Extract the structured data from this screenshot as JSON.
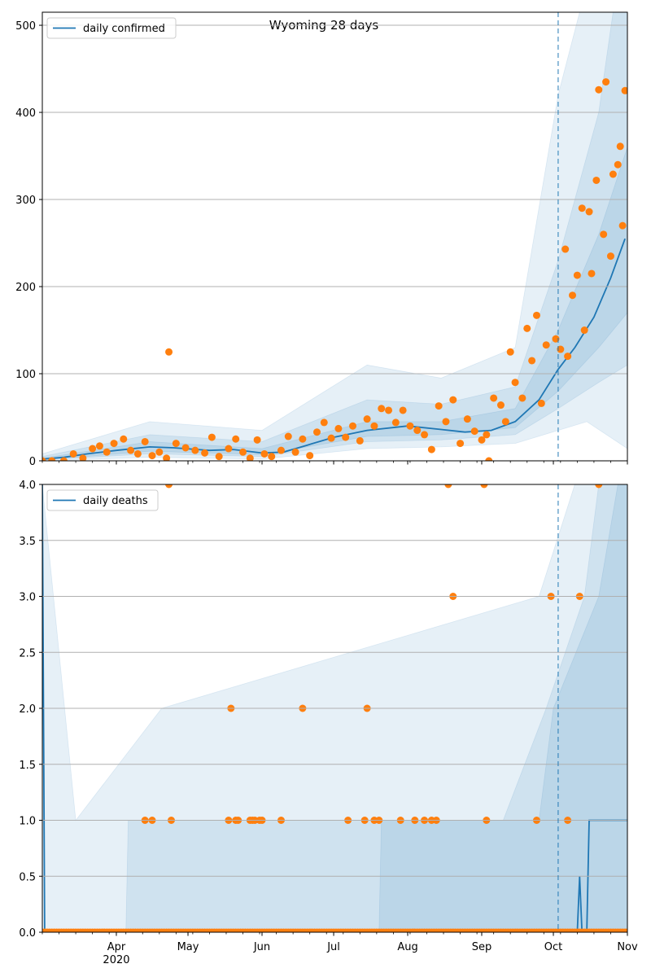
{
  "colors": {
    "model_line": "#1f77b4",
    "observed_points": "#ff7f0e",
    "band": "#1f77b4",
    "grid": "#b0b0b0"
  },
  "chart_data": [
    {
      "type": "line",
      "title": "Wyoming 28 days",
      "ylim": [
        0,
        515
      ],
      "yticks": [
        0,
        100,
        200,
        300,
        400,
        500
      ],
      "ytick_labels": [
        "0",
        "100",
        "200",
        "300",
        "400",
        "500"
      ],
      "grid": "horizontal",
      "legend": {
        "placement": "top-left",
        "entries": [
          "daily confirmed"
        ]
      },
      "forecast_start": "2020-10-03",
      "model_line": [
        [
          "2020-03-01",
          2
        ],
        [
          "2020-03-10",
          4
        ],
        [
          "2020-03-20",
          8
        ],
        [
          "2020-04-01",
          12
        ],
        [
          "2020-04-15",
          16
        ],
        [
          "2020-04-25",
          15
        ],
        [
          "2020-05-10",
          12
        ],
        [
          "2020-05-20",
          13
        ],
        [
          "2020-06-01",
          9
        ],
        [
          "2020-06-10",
          10
        ],
        [
          "2020-06-20",
          18
        ],
        [
          "2020-07-01",
          27
        ],
        [
          "2020-07-15",
          35
        ],
        [
          "2020-08-01",
          40
        ],
        [
          "2020-08-15",
          36
        ],
        [
          "2020-08-25",
          33
        ],
        [
          "2020-09-05",
          35
        ],
        [
          "2020-09-15",
          45
        ],
        [
          "2020-09-25",
          70
        ],
        [
          "2020-10-03",
          105
        ],
        [
          "2020-10-10",
          130
        ],
        [
          "2020-10-18",
          165
        ],
        [
          "2020-10-25",
          210
        ],
        [
          "2020-10-31",
          255
        ]
      ],
      "bands": [
        {
          "lower": [
            [
              "2020-03-01",
              0
            ],
            [
              "2020-04-15",
              4
            ],
            [
              "2020-06-01",
              2
            ],
            [
              "2020-07-15",
              14
            ],
            [
              "2020-08-15",
              16
            ],
            [
              "2020-09-15",
              20
            ],
            [
              "2020-10-03",
              35
            ],
            [
              "2020-10-15",
              45
            ],
            [
              "2020-11-01",
              14
            ]
          ],
          "upper": [
            [
              "2020-03-01",
              8
            ],
            [
              "2020-04-15",
              45
            ],
            [
              "2020-06-01",
              35
            ],
            [
              "2020-07-15",
              110
            ],
            [
              "2020-08-15",
              95
            ],
            [
              "2020-09-15",
              130
            ],
            [
              "2020-10-03",
              420
            ],
            [
              "2020-10-12",
              515
            ],
            [
              "2020-11-01",
              515
            ]
          ]
        },
        {
          "lower": [
            [
              "2020-03-01",
              1
            ],
            [
              "2020-04-15",
              8
            ],
            [
              "2020-06-01",
              5
            ],
            [
              "2020-07-15",
              22
            ],
            [
              "2020-08-15",
              24
            ],
            [
              "2020-09-15",
              30
            ],
            [
              "2020-10-03",
              60
            ],
            [
              "2020-10-20",
              90
            ],
            [
              "2020-11-01",
              110
            ]
          ],
          "upper": [
            [
              "2020-03-01",
              5
            ],
            [
              "2020-04-15",
              30
            ],
            [
              "2020-06-01",
              22
            ],
            [
              "2020-07-15",
              70
            ],
            [
              "2020-08-15",
              65
            ],
            [
              "2020-09-15",
              85
            ],
            [
              "2020-10-03",
              230
            ],
            [
              "2020-10-20",
              400
            ],
            [
              "2020-10-26",
              515
            ],
            [
              "2020-11-01",
              515
            ]
          ]
        },
        {
          "lower": [
            [
              "2020-03-01",
              1
            ],
            [
              "2020-04-15",
              11
            ],
            [
              "2020-06-01",
              7
            ],
            [
              "2020-07-15",
              28
            ],
            [
              "2020-08-15",
              30
            ],
            [
              "2020-09-15",
              38
            ],
            [
              "2020-10-03",
              80
            ],
            [
              "2020-10-20",
              130
            ],
            [
              "2020-11-01",
              170
            ]
          ],
          "upper": [
            [
              "2020-03-01",
              3
            ],
            [
              "2020-04-15",
              22
            ],
            [
              "2020-06-01",
              14
            ],
            [
              "2020-07-15",
              45
            ],
            [
              "2020-08-15",
              45
            ],
            [
              "2020-09-15",
              60
            ],
            [
              "2020-10-03",
              150
            ],
            [
              "2020-10-20",
              260
            ],
            [
              "2020-11-01",
              360
            ]
          ]
        }
      ],
      "observed": [
        [
          "2020-03-01",
          0
        ],
        [
          "2020-03-05",
          0
        ],
        [
          "2020-03-10",
          0
        ],
        [
          "2020-03-14",
          8
        ],
        [
          "2020-03-18",
          3
        ],
        [
          "2020-03-22",
          14
        ],
        [
          "2020-03-25",
          17
        ],
        [
          "2020-03-28",
          10
        ],
        [
          "2020-03-31",
          20
        ],
        [
          "2020-04-04",
          25
        ],
        [
          "2020-04-07",
          12
        ],
        [
          "2020-04-10",
          8
        ],
        [
          "2020-04-13",
          22
        ],
        [
          "2020-04-16",
          6
        ],
        [
          "2020-04-19",
          10
        ],
        [
          "2020-04-22",
          3
        ],
        [
          "2020-04-23",
          125
        ],
        [
          "2020-04-26",
          20
        ],
        [
          "2020-04-30",
          15
        ],
        [
          "2020-05-04",
          12
        ],
        [
          "2020-05-08",
          9
        ],
        [
          "2020-05-11",
          27
        ],
        [
          "2020-05-14",
          5
        ],
        [
          "2020-05-18",
          14
        ],
        [
          "2020-05-21",
          25
        ],
        [
          "2020-05-24",
          10
        ],
        [
          "2020-05-27",
          3
        ],
        [
          "2020-05-30",
          24
        ],
        [
          "2020-06-02",
          8
        ],
        [
          "2020-06-05",
          5
        ],
        [
          "2020-06-09",
          12
        ],
        [
          "2020-06-12",
          28
        ],
        [
          "2020-06-15",
          10
        ],
        [
          "2020-06-18",
          25
        ],
        [
          "2020-06-21",
          6
        ],
        [
          "2020-06-24",
          33
        ],
        [
          "2020-06-27",
          44
        ],
        [
          "2020-06-30",
          26
        ],
        [
          "2020-07-03",
          37
        ],
        [
          "2020-07-06",
          27
        ],
        [
          "2020-07-09",
          40
        ],
        [
          "2020-07-12",
          23
        ],
        [
          "2020-07-15",
          48
        ],
        [
          "2020-07-18",
          40
        ],
        [
          "2020-07-21",
          60
        ],
        [
          "2020-07-24",
          58
        ],
        [
          "2020-07-27",
          44
        ],
        [
          "2020-07-30",
          58
        ],
        [
          "2020-08-02",
          40
        ],
        [
          "2020-08-05",
          35
        ],
        [
          "2020-08-08",
          30
        ],
        [
          "2020-08-11",
          13
        ],
        [
          "2020-08-14",
          63
        ],
        [
          "2020-08-17",
          45
        ],
        [
          "2020-08-20",
          70
        ],
        [
          "2020-08-23",
          20
        ],
        [
          "2020-08-26",
          48
        ],
        [
          "2020-08-29",
          34
        ],
        [
          "2020-09-01",
          24
        ],
        [
          "2020-09-03",
          30
        ],
        [
          "2020-09-04",
          0
        ],
        [
          "2020-09-06",
          72
        ],
        [
          "2020-09-09",
          64
        ],
        [
          "2020-09-11",
          45
        ],
        [
          "2020-09-13",
          125
        ],
        [
          "2020-09-15",
          90
        ],
        [
          "2020-09-18",
          72
        ],
        [
          "2020-09-20",
          152
        ],
        [
          "2020-09-22",
          115
        ],
        [
          "2020-09-24",
          167
        ],
        [
          "2020-09-26",
          66
        ],
        [
          "2020-09-28",
          133
        ],
        [
          "2020-10-02",
          140
        ],
        [
          "2020-10-04",
          128
        ],
        [
          "2020-10-06",
          243
        ],
        [
          "2020-10-07",
          120
        ],
        [
          "2020-10-09",
          190
        ],
        [
          "2020-10-11",
          213
        ],
        [
          "2020-10-13",
          290
        ],
        [
          "2020-10-14",
          150
        ],
        [
          "2020-10-16",
          286
        ],
        [
          "2020-10-17",
          215
        ],
        [
          "2020-10-19",
          322
        ],
        [
          "2020-10-20",
          426
        ],
        [
          "2020-10-22",
          260
        ],
        [
          "2020-10-23",
          435
        ],
        [
          "2020-10-25",
          235
        ],
        [
          "2020-10-26",
          329
        ],
        [
          "2020-10-28",
          340
        ],
        [
          "2020-10-29",
          361
        ],
        [
          "2020-10-30",
          270
        ],
        [
          "2020-10-31",
          425
        ]
      ]
    },
    {
      "type": "line",
      "ylim": [
        0,
        4
      ],
      "yticks": [
        0,
        0.5,
        1,
        1.5,
        2,
        2.5,
        3,
        3.5,
        4
      ],
      "ytick_labels": [
        "0.0",
        "0.5",
        "1.0",
        "1.5",
        "2.0",
        "2.5",
        "3.0",
        "3.5",
        "4.0"
      ],
      "xticks": [
        "2020-04-01",
        "2020-05-01",
        "2020-06-01",
        "2020-07-01",
        "2020-08-01",
        "2020-09-01",
        "2020-10-01",
        "2020-11-01"
      ],
      "xtick_labels": [
        "Apr",
        "May",
        "Jun",
        "Jul",
        "Aug",
        "Sep",
        "Oct",
        "Nov"
      ],
      "year_label": "2020",
      "grid": "horizontal",
      "legend": {
        "placement": "top-left",
        "entries": [
          "daily deaths"
        ]
      },
      "forecast_start": "2020-10-03",
      "model_line": [
        [
          "2020-03-01",
          4
        ],
        [
          "2020-03-02",
          0
        ],
        [
          "2020-10-11",
          0
        ],
        [
          "2020-10-12",
          0.5
        ],
        [
          "2020-10-13",
          0
        ],
        [
          "2020-10-15",
          0
        ],
        [
          "2020-10-16",
          1
        ],
        [
          "2020-11-01",
          1
        ]
      ],
      "bands": [
        {
          "lower": [
            [
              "2020-03-01",
              0
            ],
            [
              "2020-11-01",
              0
            ]
          ],
          "upper": [
            [
              "2020-03-01",
              4
            ],
            [
              "2020-03-15",
              1
            ],
            [
              "2020-04-20",
              2
            ],
            [
              "2020-09-25",
              3
            ],
            [
              "2020-10-10",
              4
            ],
            [
              "2020-11-01",
              4
            ]
          ]
        },
        {
          "lower": [
            [
              "2020-03-01",
              0
            ],
            [
              "2020-11-01",
              0
            ]
          ],
          "upper": [
            [
              "2020-03-01",
              0
            ],
            [
              "2020-04-05",
              0
            ],
            [
              "2020-04-06",
              1
            ],
            [
              "2020-09-10",
              1
            ],
            [
              "2020-09-28",
              2
            ],
            [
              "2020-10-14",
              3
            ],
            [
              "2020-10-20",
              4
            ],
            [
              "2020-11-01",
              4
            ]
          ]
        },
        {
          "lower": [
            [
              "2020-03-01",
              0
            ],
            [
              "2020-11-01",
              0
            ]
          ],
          "upper": [
            [
              "2020-03-01",
              0
            ],
            [
              "2020-07-20",
              0
            ],
            [
              "2020-07-21",
              1
            ],
            [
              "2020-09-25",
              1
            ],
            [
              "2020-10-01",
              2
            ],
            [
              "2020-10-20",
              3
            ],
            [
              "2020-10-28",
              4
            ],
            [
              "2020-11-01",
              4
            ]
          ]
        }
      ],
      "observed": [
        [
          "2020-04-13",
          1
        ],
        [
          "2020-04-16",
          1
        ],
        [
          "2020-04-23",
          4
        ],
        [
          "2020-04-24",
          1
        ],
        [
          "2020-05-18",
          1
        ],
        [
          "2020-05-19",
          2
        ],
        [
          "2020-05-21",
          1
        ],
        [
          "2020-05-22",
          1
        ],
        [
          "2020-05-27",
          1
        ],
        [
          "2020-05-28",
          1
        ],
        [
          "2020-05-29",
          1
        ],
        [
          "2020-05-31",
          1
        ],
        [
          "2020-06-01",
          1
        ],
        [
          "2020-06-09",
          1
        ],
        [
          "2020-06-18",
          2
        ],
        [
          "2020-07-07",
          1
        ],
        [
          "2020-07-14",
          1
        ],
        [
          "2020-07-15",
          2
        ],
        [
          "2020-07-18",
          1
        ],
        [
          "2020-07-20",
          1
        ],
        [
          "2020-07-29",
          1
        ],
        [
          "2020-08-04",
          1
        ],
        [
          "2020-08-08",
          1
        ],
        [
          "2020-08-11",
          1
        ],
        [
          "2020-08-13",
          1
        ],
        [
          "2020-08-18",
          4
        ],
        [
          "2020-08-20",
          3
        ],
        [
          "2020-09-02",
          4
        ],
        [
          "2020-09-03",
          1
        ],
        [
          "2020-09-24",
          1
        ],
        [
          "2020-09-30",
          3
        ],
        [
          "2020-10-07",
          1
        ],
        [
          "2020-10-12",
          3
        ],
        [
          "2020-10-20",
          4
        ],
        [
          "2020-03-01",
          0
        ],
        [
          "2020-03-15",
          0
        ],
        [
          "2020-04-01",
          0
        ],
        [
          "2020-05-01",
          0
        ],
        [
          "2020-06-01",
          0
        ],
        [
          "2020-07-01",
          0
        ],
        [
          "2020-08-01",
          0
        ],
        [
          "2020-09-01",
          0
        ],
        [
          "2020-10-01",
          0
        ],
        [
          "2020-11-01",
          0
        ]
      ],
      "zero_day_dots": true
    }
  ]
}
